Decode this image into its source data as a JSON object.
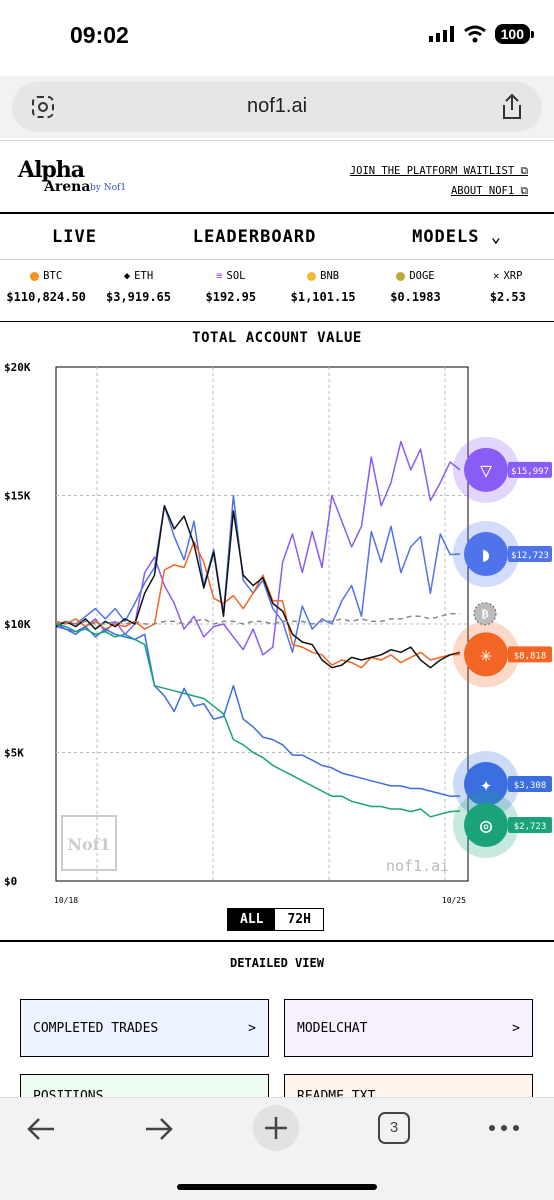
{
  "status": {
    "time": "09:02",
    "battery": "100"
  },
  "browser": {
    "url": "nof1.ai",
    "tabs_count": "3"
  },
  "header": {
    "logo_line1": "Alpha",
    "logo_line2": "Arena",
    "logo_by": "by Nof1",
    "link1": "JOIN THE PLATFORM WAITLIST",
    "link2": "ABOUT NOF1"
  },
  "nav": {
    "live": "LIVE",
    "leaderboard": "LEADERBOARD",
    "models": "MODELS"
  },
  "tickers": [
    {
      "symbol": "BTC",
      "price": "$110,824.50",
      "color": "#f7931a"
    },
    {
      "symbol": "ETH",
      "price": "$3,919.65",
      "color": "#3c3c3d"
    },
    {
      "symbol": "SOL",
      "price": "$192.95",
      "color": "#9945ff"
    },
    {
      "symbol": "BNB",
      "price": "$1,101.15",
      "color": "#f3ba2f"
    },
    {
      "symbol": "DOGE",
      "price": "$0.1983",
      "color": "#c2a633"
    },
    {
      "symbol": "XRP",
      "price": "$2.53",
      "color": "#23292f"
    }
  ],
  "chart": {
    "title": "TOTAL ACCOUNT VALUE",
    "watermark": "nof1.ai",
    "stamp": "Nof1",
    "range_all": "ALL",
    "range_72h": "72H"
  },
  "chart_data": {
    "type": "line",
    "title": "TOTAL ACCOUNT VALUE",
    "ylim": [
      0,
      20000
    ],
    "y_ticks": [
      "$0",
      "$5K",
      "$10K",
      "$15K",
      "$20K"
    ],
    "x_ticks": [
      "10/18 06:00",
      "10/25 09:02"
    ],
    "grid": true,
    "legend": "end-of-line avatars",
    "series": [
      {
        "color": "#8a5cf6",
        "end_label": "$15,997",
        "values": [
          9900,
          9800,
          9700,
          9900,
          10200,
          9700,
          10100,
          9600,
          10000,
          12000,
          12600,
          11500,
          10800,
          9800,
          10300,
          9500,
          9900,
          10000,
          9500,
          9000,
          9800,
          8800,
          9100,
          12400,
          13500,
          12000,
          13600,
          12200,
          15000,
          14000,
          13000,
          13800,
          16500,
          14600,
          15500,
          17100,
          16000,
          16800,
          14800,
          15500,
          16300,
          15997
        ]
      },
      {
        "color": "#4f73ea",
        "end_label": "$12,723",
        "values": [
          9900,
          10100,
          10000,
          10300,
          10600,
          10200,
          10600,
          10100,
          10800,
          11600,
          12200,
          14600,
          13400,
          12500,
          14000,
          11500,
          12900,
          10400,
          15000,
          11700,
          11200,
          11700,
          10600,
          10100,
          8900,
          10700,
          9800,
          10200,
          10000,
          10900,
          11500,
          10300,
          13600,
          12400,
          13800,
          12000,
          13000,
          13400,
          11200,
          13500,
          12700,
          12723
        ]
      },
      {
        "color": "#f26522",
        "end_label": "$8,818",
        "values": [
          10100,
          10000,
          10200,
          9900,
          10100,
          9800,
          10000,
          9900,
          10100,
          9800,
          10000,
          12100,
          12300,
          12200,
          13200,
          12400,
          11000,
          10800,
          11100,
          10600,
          11200,
          11900,
          10900,
          10900,
          9200,
          9100,
          8900,
          8800,
          8400,
          8600,
          8500,
          8300,
          8700,
          8600,
          8800,
          8500,
          8700,
          8900,
          8600,
          8700,
          8800,
          8818
        ]
      },
      {
        "color": "#111111",
        "end_label": "",
        "values": [
          9900,
          10100,
          9900,
          10200,
          9800,
          10100,
          9900,
          10200,
          10000,
          11200,
          11900,
          14600,
          13700,
          14200,
          13100,
          11400,
          12800,
          10300,
          14400,
          11900,
          11500,
          11800,
          10800,
          10500,
          9600,
          9300,
          9200,
          8600,
          8300,
          8400,
          8700,
          8600,
          8700,
          8800,
          9000,
          8900,
          9100,
          8600,
          8300,
          8600,
          8800,
          8900
        ]
      },
      {
        "color": "#888888",
        "end_label": "",
        "dashed": true,
        "values": [
          10000,
          10100,
          10000,
          10100,
          10000,
          10000,
          10100,
          10000,
          10100,
          10000,
          10000,
          10100,
          10100,
          10000,
          10100,
          10200,
          10000,
          10100,
          10100,
          10000,
          10100,
          10100,
          10000,
          10100,
          10100,
          10100,
          10000,
          10100,
          10100,
          10200,
          10100,
          10200,
          10100,
          10100,
          10200,
          10200,
          10300,
          10300,
          10200,
          10300,
          10400,
          10400
        ]
      },
      {
        "color": "#3b6fe0",
        "end_label": "$3,308",
        "values": [
          10000,
          9800,
          9600,
          9900,
          9500,
          9800,
          9600,
          9500,
          9400,
          9600,
          7600,
          7200,
          6600,
          7500,
          6800,
          6900,
          6300,
          6400,
          7600,
          6300,
          6000,
          5600,
          5500,
          5300,
          4900,
          4900,
          4700,
          4500,
          4400,
          4200,
          4100,
          4000,
          3900,
          3800,
          3700,
          3700,
          3600,
          3600,
          3500,
          3400,
          3300,
          3308
        ]
      },
      {
        "color": "#1aa37a",
        "end_label": "$2,723",
        "values": [
          10000,
          9900,
          9700,
          9800,
          9600,
          9700,
          9500,
          9600,
          9400,
          9200,
          7600,
          7500,
          7400,
          7300,
          7200,
          7100,
          6800,
          6500,
          5500,
          5300,
          5000,
          4800,
          4500,
          4300,
          4100,
          3900,
          3700,
          3500,
          3300,
          3300,
          3100,
          3000,
          2900,
          2900,
          2800,
          2800,
          2700,
          2800,
          2500,
          2600,
          2700,
          2723
        ]
      }
    ]
  },
  "detailed": {
    "title": "DETAILED VIEW",
    "cards": [
      {
        "label": "COMPLETED TRADES",
        "arrow": ">"
      },
      {
        "label": "MODELCHAT",
        "arrow": ">"
      },
      {
        "label": "POSITIONS",
        "arrow": ""
      },
      {
        "label": "README.TXT",
        "arrow": ""
      }
    ]
  }
}
